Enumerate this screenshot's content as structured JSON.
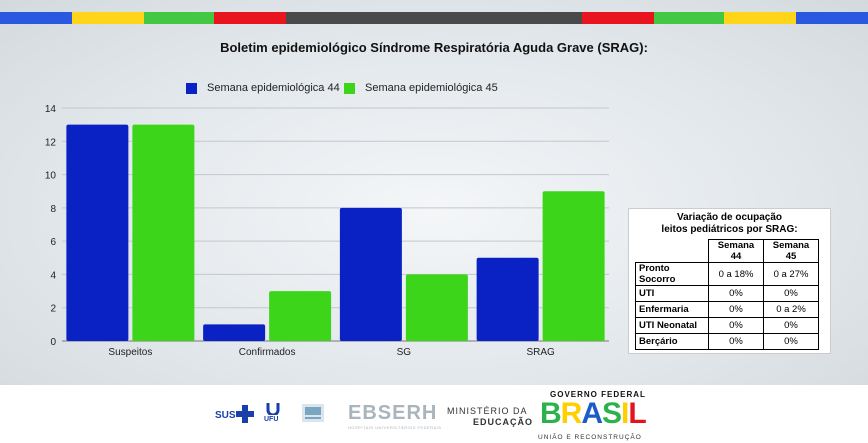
{
  "colors": {
    "series1": "#0a22c4",
    "series2": "#3dd51a"
  },
  "stripes": [
    {
      "x": 0,
      "w": 72,
      "c": "#2b58e0"
    },
    {
      "x": 72,
      "w": 72,
      "c": "#ffd51a"
    },
    {
      "x": 144,
      "w": 70,
      "c": "#44c844"
    },
    {
      "x": 214,
      "w": 72,
      "c": "#e8141e"
    },
    {
      "x": 286,
      "w": 296,
      "c": "#4a4a4a"
    },
    {
      "x": 582,
      "w": 72,
      "c": "#e8141e"
    },
    {
      "x": 654,
      "w": 70,
      "c": "#44c844"
    },
    {
      "x": 724,
      "w": 72,
      "c": "#ffd51a"
    },
    {
      "x": 796,
      "w": 72,
      "c": "#2b58e0"
    }
  ],
  "chart_data": {
    "type": "bar",
    "title": "Boletim epidemiológico Síndrome Respiratória Aguda Grave (SRAG):",
    "categories": [
      "Suspeitos",
      "Confirmados",
      "SG",
      "SRAG"
    ],
    "series": [
      {
        "name": "Semana epidemiológica 44",
        "values": [
          13,
          1,
          8,
          5
        ]
      },
      {
        "name": "Semana epidemiológica 45",
        "values": [
          13,
          3,
          4,
          9
        ]
      }
    ],
    "ylim": [
      0,
      14
    ],
    "yticks": [
      0,
      2,
      4,
      6,
      8,
      10,
      12,
      14
    ],
    "grid": true,
    "legend": "top"
  },
  "table": {
    "title_line1": "Variação de ocupação",
    "title_line2": "leitos pediátricos por SRAG:",
    "headers": [
      "Semana 44",
      "Semana 45"
    ],
    "rows": [
      {
        "label": "Pronto Socorro",
        "w44": "0 a 18%",
        "w45": "0 a 27%"
      },
      {
        "label": "UTI",
        "w44": "0%",
        "w45": "0%"
      },
      {
        "label": "Enfermaria",
        "w44": "0%",
        "w45": "0 a 2%"
      },
      {
        "label": "UTI Neonatal",
        "w44": "0%",
        "w45": "0%"
      },
      {
        "label": "Berçário",
        "w44": "0%",
        "w45": "0%"
      }
    ]
  },
  "footer": {
    "sus": "SUS",
    "ufu": "UFU",
    "ebserh": "EBSERH",
    "ebserh_sub": "HOSPITAIS UNIVERSITÁRIOS FEDERAIS",
    "ministerio_line1": "MINISTÉRIO DA",
    "ministerio_line2": "EDUCAÇÃO",
    "governo": "GOVERNO FEDERAL",
    "brasil": "BRASIL",
    "uniao": "UNIÃO E RECONSTRUÇÃO"
  }
}
